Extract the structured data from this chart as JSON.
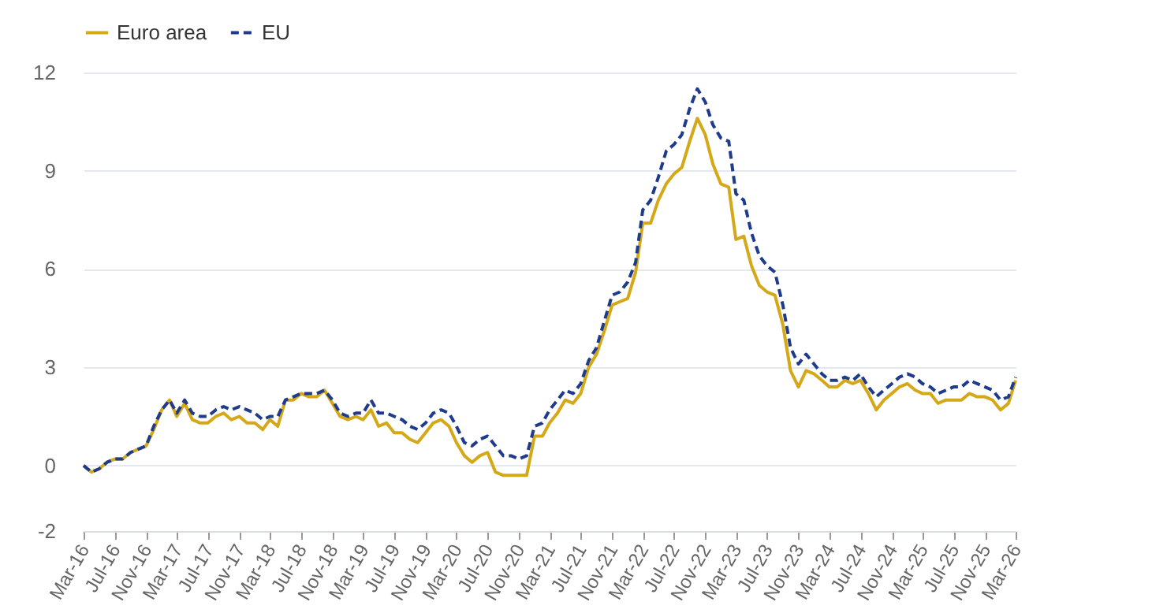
{
  "chart_data": {
    "type": "line",
    "legend": "top",
    "grid": "y",
    "marker": "none",
    "xlim": [
      "2016-03",
      "2026-03"
    ],
    "xticks": [
      {
        "value": "2016-03",
        "label": "Mar-16"
      },
      {
        "value": "2016-07",
        "label": "Jul-16"
      },
      {
        "value": "2016-11",
        "label": "Nov-16"
      },
      {
        "value": "2017-03",
        "label": "Mar-17"
      },
      {
        "value": "2017-07",
        "label": "Jul-17"
      },
      {
        "value": "2017-11",
        "label": "Nov-17"
      },
      {
        "value": "2018-03",
        "label": "Mar-18"
      },
      {
        "value": "2018-07",
        "label": "Jul-18"
      },
      {
        "value": "2018-11",
        "label": "Nov-18"
      },
      {
        "value": "2019-03",
        "label": "Mar-19"
      },
      {
        "value": "2019-07",
        "label": "Jul-19"
      },
      {
        "value": "2019-11",
        "label": "Nov-19"
      },
      {
        "value": "2020-03",
        "label": "Mar-20"
      },
      {
        "value": "2020-07",
        "label": "Jul-20"
      },
      {
        "value": "2020-11",
        "label": "Nov-20"
      },
      {
        "value": "2021-03",
        "label": "Mar-21"
      },
      {
        "value": "2021-07",
        "label": "Jul-21"
      },
      {
        "value": "2021-11",
        "label": "Nov-21"
      },
      {
        "value": "2022-03",
        "label": "Mar-22"
      },
      {
        "value": "2022-07",
        "label": "Jul-22"
      },
      {
        "value": "2022-11",
        "label": "Nov-22"
      },
      {
        "value": "2023-03",
        "label": "Mar-23"
      },
      {
        "value": "2023-07",
        "label": "Jul-23"
      },
      {
        "value": "2023-11",
        "label": "Nov-23"
      },
      {
        "value": "2024-03",
        "label": "Mar-24"
      },
      {
        "value": "2024-07",
        "label": "Jul-24"
      },
      {
        "value": "2024-11",
        "label": "Nov-24"
      },
      {
        "value": "2025-03",
        "label": "Mar-25"
      },
      {
        "value": "2025-07",
        "label": "Jul-25"
      },
      {
        "value": "2025-11",
        "label": "Nov-25"
      },
      {
        "value": "2026-03",
        "label": "Mar-26"
      }
    ],
    "ylim": [
      -2,
      12
    ],
    "yticks": [
      -2,
      0,
      3,
      6,
      9,
      12
    ],
    "x": [
      "2016-03",
      "2016-04",
      "2016-05",
      "2016-06",
      "2016-07",
      "2016-08",
      "2016-09",
      "2016-10",
      "2016-11",
      "2016-12",
      "2017-01",
      "2017-02",
      "2017-03",
      "2017-04",
      "2017-05",
      "2017-06",
      "2017-07",
      "2017-08",
      "2017-09",
      "2017-10",
      "2017-11",
      "2017-12",
      "2018-01",
      "2018-02",
      "2018-03",
      "2018-04",
      "2018-05",
      "2018-06",
      "2018-07",
      "2018-08",
      "2018-09",
      "2018-10",
      "2018-11",
      "2018-12",
      "2019-01",
      "2019-02",
      "2019-03",
      "2019-04",
      "2019-05",
      "2019-06",
      "2019-07",
      "2019-08",
      "2019-09",
      "2019-10",
      "2019-11",
      "2019-12",
      "2020-01",
      "2020-02",
      "2020-03",
      "2020-04",
      "2020-05",
      "2020-06",
      "2020-07",
      "2020-08",
      "2020-09",
      "2020-10",
      "2020-11",
      "2020-12",
      "2021-01",
      "2021-02",
      "2021-03",
      "2021-04",
      "2021-05",
      "2021-06",
      "2021-07",
      "2021-08",
      "2021-09",
      "2021-10",
      "2021-11",
      "2021-12",
      "2022-01",
      "2022-02",
      "2022-03",
      "2022-04",
      "2022-05",
      "2022-06",
      "2022-07",
      "2022-08",
      "2022-09",
      "2022-10",
      "2022-11",
      "2022-12",
      "2023-01",
      "2023-02",
      "2023-03",
      "2023-04",
      "2023-05",
      "2023-06",
      "2023-07",
      "2023-08",
      "2023-09",
      "2023-10",
      "2023-11",
      "2023-12",
      "2024-01",
      "2024-02",
      "2024-03",
      "2024-04",
      "2024-05",
      "2024-06",
      "2024-07",
      "2024-08",
      "2024-09",
      "2024-10",
      "2024-11",
      "2024-12",
      "2025-01",
      "2025-02",
      "2025-03",
      "2025-04",
      "2025-05",
      "2025-06",
      "2025-07",
      "2025-08",
      "2025-09",
      "2025-10",
      "2025-11",
      "2025-12",
      "2026-01",
      "2026-02",
      "2026-03"
    ],
    "series": [
      {
        "name": "Euro area",
        "color": "#d4a817",
        "line_style": "solid",
        "values": [
          0.0,
          -0.2,
          -0.1,
          0.1,
          0.2,
          0.2,
          0.4,
          0.5,
          0.6,
          1.1,
          1.7,
          2.0,
          1.5,
          1.9,
          1.4,
          1.3,
          1.3,
          1.5,
          1.6,
          1.4,
          1.5,
          1.3,
          1.3,
          1.1,
          1.4,
          1.2,
          2.0,
          2.0,
          2.2,
          2.1,
          2.1,
          2.3,
          1.9,
          1.5,
          1.4,
          1.5,
          1.4,
          1.7,
          1.2,
          1.3,
          1.0,
          1.0,
          0.8,
          0.7,
          1.0,
          1.3,
          1.4,
          1.2,
          0.7,
          0.3,
          0.1,
          0.3,
          0.4,
          -0.2,
          -0.3,
          -0.3,
          -0.3,
          -0.3,
          0.9,
          0.9,
          1.3,
          1.6,
          2.0,
          1.9,
          2.2,
          3.0,
          3.4,
          4.1,
          4.9,
          5.0,
          5.1,
          5.9,
          7.4,
          7.4,
          8.1,
          8.6,
          8.9,
          9.1,
          9.9,
          10.6,
          10.1,
          9.2,
          8.6,
          8.5,
          6.9,
          7.0,
          6.1,
          5.5,
          5.3,
          5.2,
          4.3,
          2.9,
          2.4,
          2.9,
          2.8,
          2.6,
          2.4,
          2.4,
          2.6,
          2.5,
          2.6,
          2.2,
          1.7,
          2.0,
          2.2,
          2.4,
          2.5,
          2.3,
          2.2,
          2.2,
          1.9,
          2.0,
          2.0,
          2.0,
          2.2,
          2.1,
          2.1,
          2.0,
          1.7,
          1.9,
          2.6
        ]
      },
      {
        "name": "EU",
        "color": "#1f3b8c",
        "line_style": "dashed",
        "values": [
          0.0,
          -0.2,
          -0.1,
          0.1,
          0.2,
          0.2,
          0.4,
          0.5,
          0.6,
          1.2,
          1.7,
          2.0,
          1.6,
          2.0,
          1.6,
          1.5,
          1.5,
          1.7,
          1.8,
          1.7,
          1.8,
          1.7,
          1.6,
          1.4,
          1.5,
          1.5,
          2.0,
          2.1,
          2.2,
          2.2,
          2.2,
          2.3,
          2.0,
          1.6,
          1.5,
          1.6,
          1.6,
          2.0,
          1.6,
          1.6,
          1.5,
          1.4,
          1.2,
          1.1,
          1.3,
          1.6,
          1.7,
          1.6,
          1.2,
          0.7,
          0.6,
          0.8,
          0.9,
          0.6,
          0.3,
          0.3,
          0.2,
          0.3,
          1.2,
          1.3,
          1.7,
          2.0,
          2.3,
          2.2,
          2.5,
          3.2,
          3.6,
          4.4,
          5.2,
          5.3,
          5.6,
          6.2,
          7.8,
          8.1,
          8.8,
          9.6,
          9.8,
          10.1,
          10.9,
          11.5,
          11.1,
          10.4,
          10.0,
          9.9,
          8.3,
          8.1,
          7.1,
          6.4,
          6.1,
          5.9,
          4.9,
          3.6,
          3.1,
          3.4,
          3.1,
          2.8,
          2.6,
          2.6,
          2.7,
          2.6,
          2.8,
          2.4,
          2.1,
          2.3,
          2.5,
          2.7,
          2.8,
          2.7,
          2.5,
          2.4,
          2.2,
          2.3,
          2.4,
          2.4,
          2.6,
          2.5,
          2.4,
          2.3,
          2.0,
          2.1,
          2.7
        ]
      }
    ]
  }
}
